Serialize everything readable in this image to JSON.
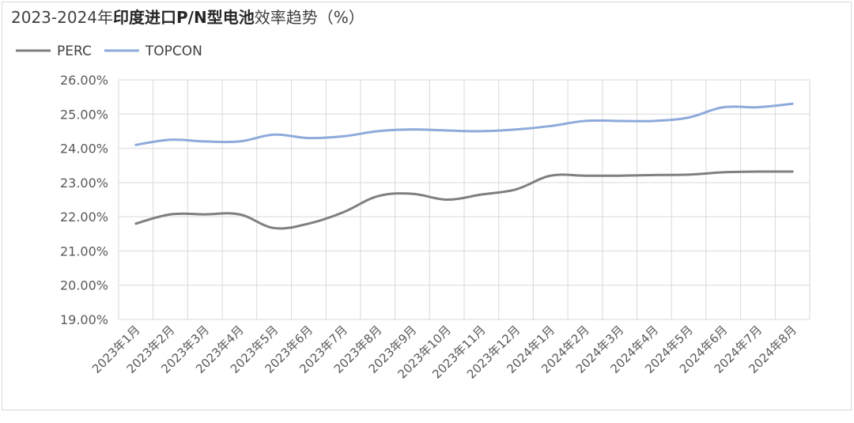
{
  "chart_data": {
    "type": "line",
    "title_prefix": "2023-2024年",
    "title_bold": "印度进口P/N型电池",
    "title_suffix": "效率趋势（%）",
    "categories": [
      "2023年1月",
      "2023年2月",
      "2023年3月",
      "2023年4月",
      "2023年5月",
      "2023年6月",
      "2023年7月",
      "2023年8月",
      "2023年9月",
      "2023年10月",
      "2023年11月",
      "2023年12月",
      "2024年1月",
      "2024年2月",
      "2024年3月",
      "2024年4月",
      "2024年5月",
      "2024年6月",
      "2024年7月",
      "2024年8月"
    ],
    "series": [
      {
        "name": "PERC",
        "color": "#7f7f7f",
        "values": [
          21.8,
          22.07,
          22.07,
          22.07,
          21.67,
          21.8,
          22.13,
          22.6,
          22.67,
          22.5,
          22.65,
          22.8,
          23.2,
          23.2,
          23.2,
          23.22,
          23.23,
          23.3,
          23.32,
          23.32
        ]
      },
      {
        "name": "TOPCON",
        "color": "#8eaadb",
        "values": [
          24.1,
          24.25,
          24.2,
          24.2,
          24.4,
          24.3,
          24.35,
          24.5,
          24.55,
          24.52,
          24.5,
          24.55,
          24.65,
          24.8,
          24.8,
          24.8,
          24.9,
          25.2,
          25.2,
          25.3
        ]
      }
    ],
    "ylim": [
      19,
      26
    ],
    "yticks": [
      19,
      20,
      21,
      22,
      23,
      24,
      25,
      26
    ],
    "ytick_labels": [
      "19.00%",
      "20.00%",
      "21.00%",
      "22.00%",
      "23.00%",
      "24.00%",
      "25.00%",
      "26.00%"
    ],
    "grid": true,
    "legend_position": "top-left"
  }
}
